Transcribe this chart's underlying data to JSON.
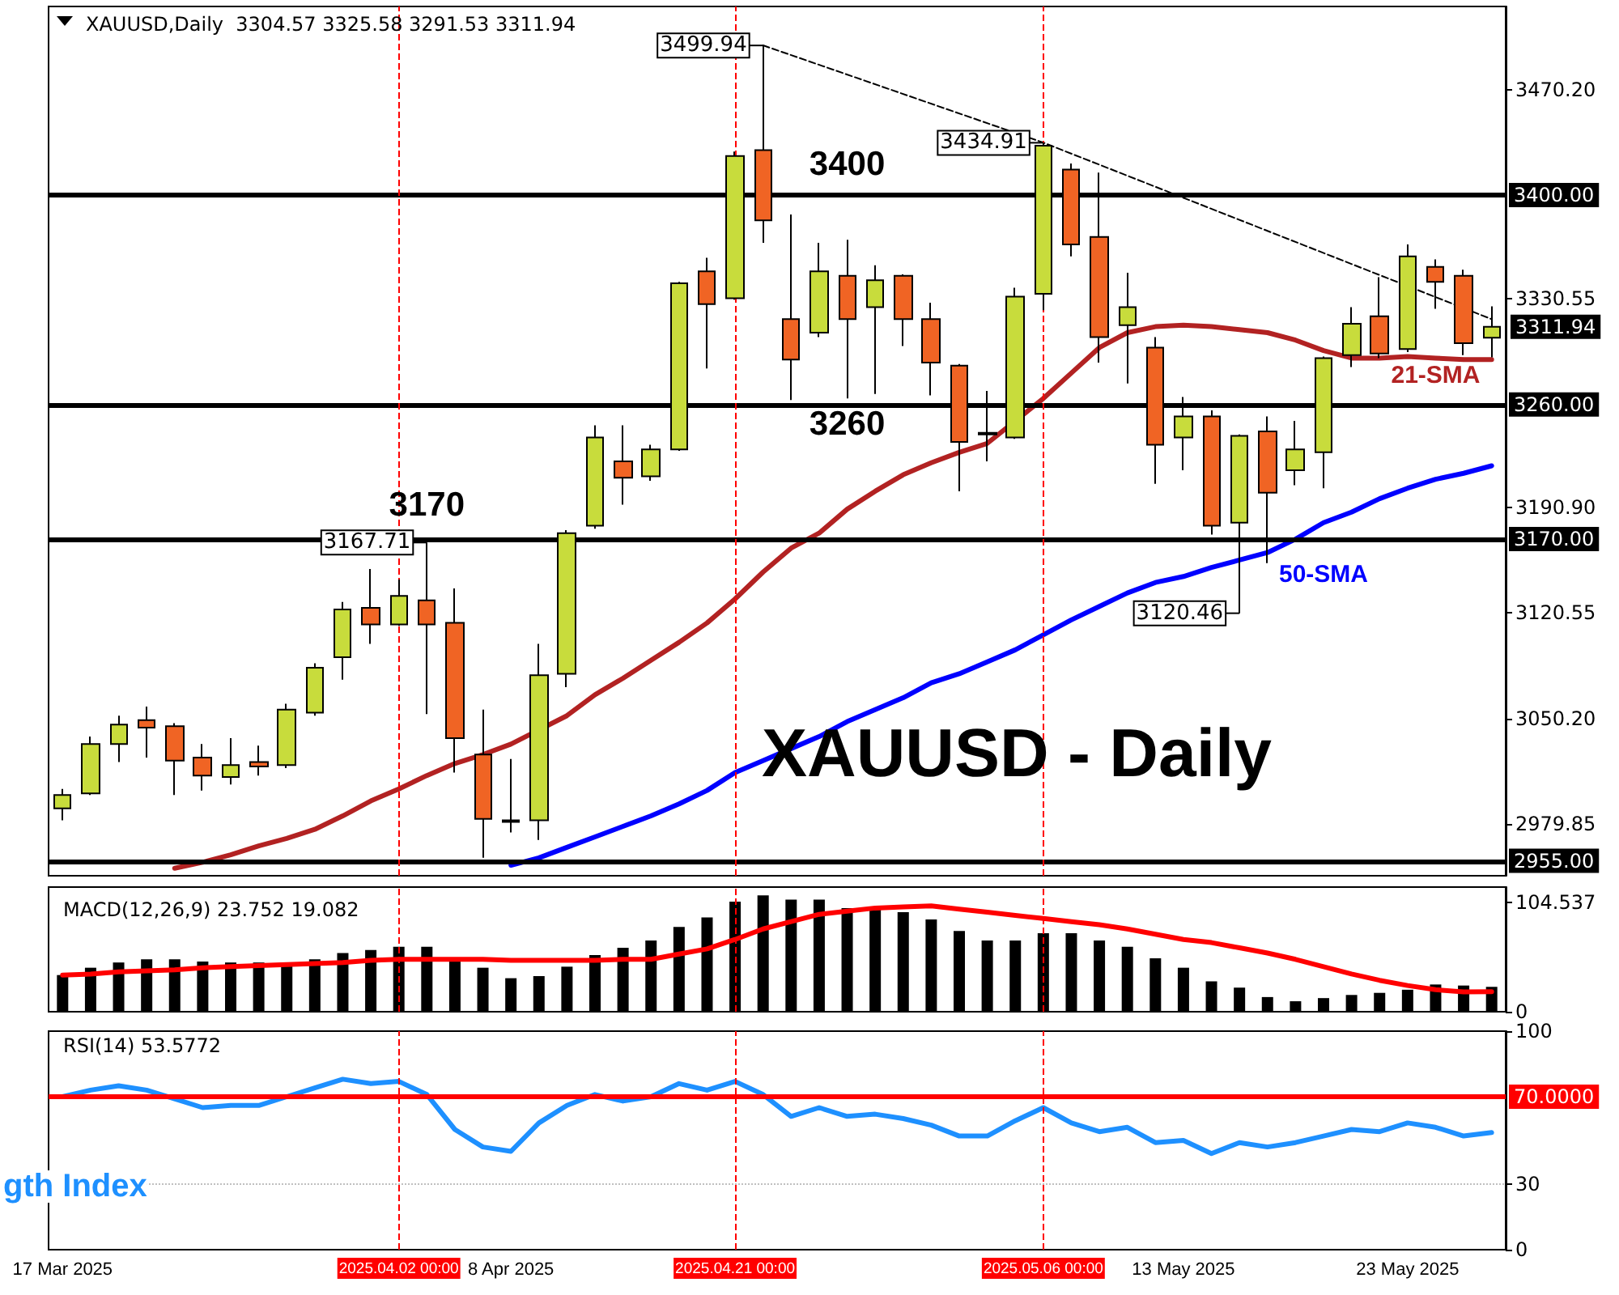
{
  "chart_data": [
    {
      "type": "candlestick",
      "title": "XAUUSD,Daily  3304.57 3325.58 3291.53 3311.94",
      "categories": [
        "17 Mar 2025",
        null,
        null,
        null,
        null,
        null,
        null,
        null,
        null,
        null,
        null,
        null,
        "2025.04.02 00:00",
        null,
        null,
        null,
        "8 Apr 2025",
        null,
        null,
        null,
        null,
        null,
        null,
        null,
        "2025.04.21 00:00",
        null,
        null,
        null,
        null,
        null,
        null,
        null,
        null,
        null,
        null,
        "2025.05.06 00:00",
        null,
        null,
        null,
        null,
        "13 May 2025",
        null,
        null,
        null,
        null,
        null,
        null,
        null,
        "23 May 2025",
        null,
        null,
        null
      ],
      "ohlc": [
        [
          2990,
          3003,
          2982,
          2999
        ],
        [
          3000,
          3038,
          2999,
          3033
        ],
        [
          3033,
          3052,
          3021,
          3046
        ],
        [
          3049,
          3058,
          3024,
          3044
        ],
        [
          3045,
          3047,
          2999,
          3022
        ],
        [
          3024,
          3033,
          3002,
          3012
        ],
        [
          3011,
          3037,
          3006,
          3019
        ],
        [
          3021,
          3032,
          3012,
          3018
        ],
        [
          3019,
          3060,
          3017,
          3056
        ],
        [
          3054,
          3087,
          3052,
          3084
        ],
        [
          3091,
          3128,
          3076,
          3123
        ],
        [
          3124,
          3150,
          3100,
          3113
        ],
        [
          3113,
          3143,
          3112,
          3132
        ],
        [
          3129,
          3167.71,
          3053,
          3113
        ],
        [
          3114,
          3137,
          3014,
          3037
        ],
        [
          3026,
          3056,
          2957,
          2983
        ],
        [
          2981,
          3023,
          2974,
          2982
        ],
        [
          2982,
          3100,
          2969,
          3079
        ],
        [
          3080,
          3176,
          3071,
          3174
        ],
        [
          3179,
          3246,
          3177,
          3238
        ],
        [
          3222,
          3246,
          3193,
          3211
        ],
        [
          3212,
          3233,
          3209,
          3230
        ],
        [
          3230,
          3342,
          3229,
          3341
        ],
        [
          3349,
          3358,
          3284,
          3327
        ],
        [
          3331,
          3429,
          3330,
          3426
        ],
        [
          3430,
          3499.94,
          3368,
          3383
        ],
        [
          3317,
          3387,
          3263,
          3290
        ],
        [
          3308,
          3368,
          3305,
          3349
        ],
        [
          3346,
          3370,
          3264,
          3317
        ],
        [
          3325,
          3353,
          3267,
          3343
        ],
        [
          3346,
          3347,
          3299,
          3317
        ],
        [
          3317,
          3328,
          3266,
          3288
        ],
        [
          3286,
          3287,
          3202,
          3235
        ],
        [
          3240,
          3269,
          3222,
          3241
        ],
        [
          3238,
          3338,
          3237,
          3332
        ],
        [
          3334,
          3434.91,
          3323,
          3433
        ],
        [
          3417,
          3421,
          3359,
          3367
        ],
        [
          3372,
          3415,
          3288,
          3305
        ],
        [
          3313,
          3348,
          3274,
          3325
        ],
        [
          3298,
          3305,
          3207,
          3233
        ],
        [
          3238,
          3265,
          3216,
          3252
        ],
        [
          3252,
          3256,
          3173,
          3179
        ],
        [
          3181,
          3240,
          3120.46,
          3239
        ],
        [
          3242,
          3252,
          3154,
          3201
        ],
        [
          3216,
          3249,
          3206,
          3230
        ],
        [
          3228,
          3292,
          3204,
          3291
        ],
        [
          3293,
          3325,
          3285,
          3314
        ],
        [
          3319,
          3345,
          3291,
          3294
        ],
        [
          3297,
          3367,
          3295,
          3359
        ],
        [
          3352,
          3357,
          3324,
          3342
        ],
        [
          3346,
          3350,
          3293,
          3301
        ],
        [
          3304.57,
          3325.58,
          3291.53,
          3311.94
        ]
      ],
      "colors": [
        "#c8dc3c",
        "#c8dc3c",
        "#c8dc3c",
        "#f06424",
        "#f06424",
        "#f06424",
        "#c8dc3c",
        "#f06424",
        "#c8dc3c",
        "#c8dc3c",
        "#c8dc3c",
        "#f06424",
        "#c8dc3c",
        "#f06424",
        "#f06424",
        "#f06424",
        "#c8dc3c",
        "#c8dc3c",
        "#c8dc3c",
        "#c8dc3c",
        "#f06424",
        "#c8dc3c",
        "#c8dc3c",
        "#f06424",
        "#c8dc3c",
        "#f06424",
        "#f06424",
        "#c8dc3c",
        "#f06424",
        "#c8dc3c",
        "#f06424",
        "#f06424",
        "#f06424",
        "#c8dc3c",
        "#c8dc3c",
        "#c8dc3c",
        "#f06424",
        "#f06424",
        "#c8dc3c",
        "#f06424",
        "#c8dc3c",
        "#f06424",
        "#c8dc3c",
        "#f06424",
        "#c8dc3c",
        "#c8dc3c",
        "#c8dc3c",
        "#f06424",
        "#c8dc3c",
        "#f06424",
        "#f06424",
        "#c8dc3c"
      ],
      "series": [
        {
          "type": "line",
          "name": "21-SMA",
          "color": "#b22222",
          "values": [
            null,
            null,
            null,
            null,
            2950,
            2954,
            2959,
            2965,
            2970,
            2976,
            2985,
            2995,
            3003,
            3012,
            3020,
            3026,
            3033,
            null,
            3052,
            3066,
            3077,
            3089,
            3101,
            3114,
            3130,
            3148,
            3164,
            3174,
            3190,
            3202,
            3213,
            3221,
            3228,
            3234,
            null,
            3264,
            3281,
            3298,
            3308,
            3312,
            3313,
            3312,
            3310,
            3308,
            3303,
            3296,
            3291,
            3291,
            3292,
            3291,
            3290,
            3290
          ]
        },
        {
          "type": "line",
          "name": "50-SMA",
          "color": "#0000ff",
          "values": [
            null,
            null,
            null,
            null,
            null,
            null,
            null,
            null,
            null,
            null,
            null,
            null,
            null,
            null,
            null,
            null,
            2952,
            2957,
            2964,
            2971,
            2978,
            2985,
            2993,
            3002,
            3014,
            3022,
            3030,
            3038,
            3048,
            3056,
            3064,
            3074,
            3080,
            3088,
            3096,
            3106,
            3116,
            3125,
            3134,
            3141,
            3145,
            3151,
            3156,
            3161,
            3170,
            3181,
            3188,
            3197,
            3204,
            3210,
            3214,
            3219
          ]
        },
        {
          "type": "line",
          "color": "#000000",
          "line_style": "dashed",
          "values": [
            null,
            null,
            null,
            null,
            null,
            null,
            null,
            null,
            null,
            null,
            null,
            null,
            null,
            null,
            null,
            null,
            null,
            null,
            null,
            null,
            null,
            null,
            null,
            null,
            null,
            3500,
            null,
            null,
            null,
            null,
            null,
            null,
            null,
            null,
            null,
            3435,
            null,
            null,
            null,
            null,
            null,
            null,
            null,
            null,
            null,
            null,
            null,
            null,
            null,
            null,
            null,
            3317
          ]
        }
      ],
      "ylim": [
        2945,
        3526
      ],
      "yticks": [
        {
          "value": 3470.2,
          "label": "3470.20"
        },
        3330.55,
        {
          "value": 3190.9,
          "label": "3190.90"
        },
        3120.55,
        {
          "value": 3050.2,
          "label": "3050.20"
        },
        2979.85
      ],
      "ref_lines": [
        {
          "axis": "y",
          "value": 3400,
          "label": "3400.00",
          "color": "#000000"
        },
        {
          "axis": "y",
          "value": 3260,
          "label": "3260.00",
          "color": "#000000"
        },
        {
          "axis": "y",
          "value": 3170,
          "label": "3170.00",
          "color": "#000000"
        },
        {
          "axis": "y",
          "value": 2955,
          "label": "2955.00",
          "color": "#000000"
        },
        {
          "axis": "x",
          "value": "2025.04.02 00:00",
          "color": "#ff0000",
          "line_style": "dashed"
        },
        {
          "axis": "x",
          "value": "2025.04.21 00:00",
          "color": "#ff0000",
          "line_style": "dashed"
        },
        {
          "axis": "x",
          "value": "2025.05.06 00:00",
          "color": "#ff0000",
          "line_style": "dashed"
        }
      ],
      "annotations": [
        "3499.94",
        "3434.91",
        "3167.71",
        "3120.46",
        {
          "text": "3400",
          "y": 3400
        },
        {
          "text": "3260",
          "y": 3260
        },
        {
          "text": "3170",
          "y": 3170
        },
        "XAUUSD - Daily",
        "3311.94"
      ],
      "tick_labels": "y"
    },
    {
      "type": "bar",
      "title": "MACD(12,26,9) 23.752 19.082",
      "categories": [
        "17 Mar 2025",
        null,
        null,
        null,
        null,
        null,
        null,
        null,
        null,
        null,
        null,
        null,
        "2025.04.02 00:00",
        null,
        null,
        null,
        "8 Apr 2025",
        null,
        null,
        null,
        null,
        null,
        null,
        null,
        "2025.04.21 00:00",
        null,
        null,
        null,
        null,
        null,
        null,
        null,
        null,
        null,
        null,
        "2025.05.06 00:00",
        null,
        null,
        null,
        null,
        "13 May 2025",
        null,
        null,
        null,
        null,
        null,
        null,
        null,
        "23 May 2025",
        null,
        null,
        null
      ],
      "series": [
        {
          "color": "#000000",
          "values": [
            35,
            42,
            47,
            50,
            50,
            48,
            47,
            47,
            45,
            50,
            56,
            59,
            62,
            62,
            51,
            42,
            32,
            34,
            43,
            54,
            61,
            68,
            81,
            90,
            105,
            111,
            107,
            107,
            99,
            99,
            95,
            88,
            77,
            68,
            68,
            75,
            75,
            68,
            62,
            51,
            42,
            29,
            23,
            14,
            10,
            13,
            16,
            18,
            21,
            26,
            25,
            23.752
          ]
        },
        {
          "type": "line",
          "color": "#ff0000",
          "values": [
            35,
            36,
            38,
            39,
            40,
            42,
            43,
            44,
            45,
            46,
            47,
            49,
            50,
            50,
            50,
            50,
            49,
            49,
            49,
            49,
            50,
            50,
            55,
            60,
            69,
            79,
            86,
            93,
            96,
            99,
            100,
            101,
            98,
            95,
            92,
            89,
            86,
            83,
            79,
            74,
            69,
            66,
            61,
            56,
            50,
            43,
            36,
            30,
            25,
            21,
            19,
            19.082
          ]
        }
      ],
      "ylim": [
        0,
        119
      ],
      "yticks": [
        0,
        104.537
      ],
      "ref_lines": [
        {
          "axis": "x",
          "value": "2025.04.02 00:00",
          "color": "#ff0000",
          "line_style": "dashed"
        },
        {
          "axis": "x",
          "value": "2025.04.21 00:00",
          "color": "#ff0000",
          "line_style": "dashed"
        },
        {
          "axis": "x",
          "value": "2025.05.06 00:00",
          "color": "#ff0000",
          "line_style": "dashed"
        }
      ],
      "tick_labels": "y"
    },
    {
      "type": "line",
      "title": "RSI(14) 53.5772",
      "categories": [
        "17 Mar 2025",
        null,
        null,
        null,
        null,
        null,
        null,
        null,
        null,
        null,
        null,
        null,
        "2025.04.02 00:00",
        null,
        null,
        null,
        "8 Apr 2025",
        null,
        null,
        null,
        null,
        null,
        null,
        null,
        "2025.04.21 00:00",
        null,
        null,
        null,
        null,
        null,
        null,
        null,
        null,
        null,
        null,
        "2025.05.06 00:00",
        null,
        null,
        null,
        null,
        "13 May 2025",
        null,
        null,
        null,
        null,
        null,
        null,
        null,
        "23 May 2025",
        null,
        null,
        null
      ],
      "series": [
        {
          "color": "#1e90ff",
          "values": [
            70,
            73,
            75,
            73,
            69,
            65,
            66,
            66,
            70,
            74,
            78,
            76,
            77,
            71,
            55,
            47,
            45,
            58,
            66,
            71,
            68,
            70,
            76,
            73,
            77,
            71,
            61,
            65,
            61,
            62,
            60,
            57,
            52,
            52,
            59,
            65,
            58,
            54,
            56,
            49,
            50,
            44,
            49,
            47,
            49,
            52,
            55,
            54,
            58,
            56,
            52,
            53.5772
          ]
        }
      ],
      "ylim": [
        0,
        100
      ],
      "yticks": [
        0,
        30,
        100
      ],
      "ref_lines": [
        {
          "axis": "y",
          "value": 70,
          "label": "70.0000",
          "color": "#ff0000"
        },
        {
          "axis": "y",
          "value": 30,
          "color": "#c0c0c0",
          "line_style": "dotted"
        },
        {
          "axis": "x",
          "value": "2025.04.02 00:00",
          "color": "#ff0000",
          "line_style": "dashed"
        },
        {
          "axis": "x",
          "value": "2025.04.21 00:00",
          "color": "#ff0000",
          "line_style": "dashed"
        },
        {
          "axis": "x",
          "value": "2025.05.06 00:00",
          "color": "#ff0000",
          "line_style": "dashed"
        }
      ],
      "annotations": [
        "gth Index"
      ]
    }
  ]
}
